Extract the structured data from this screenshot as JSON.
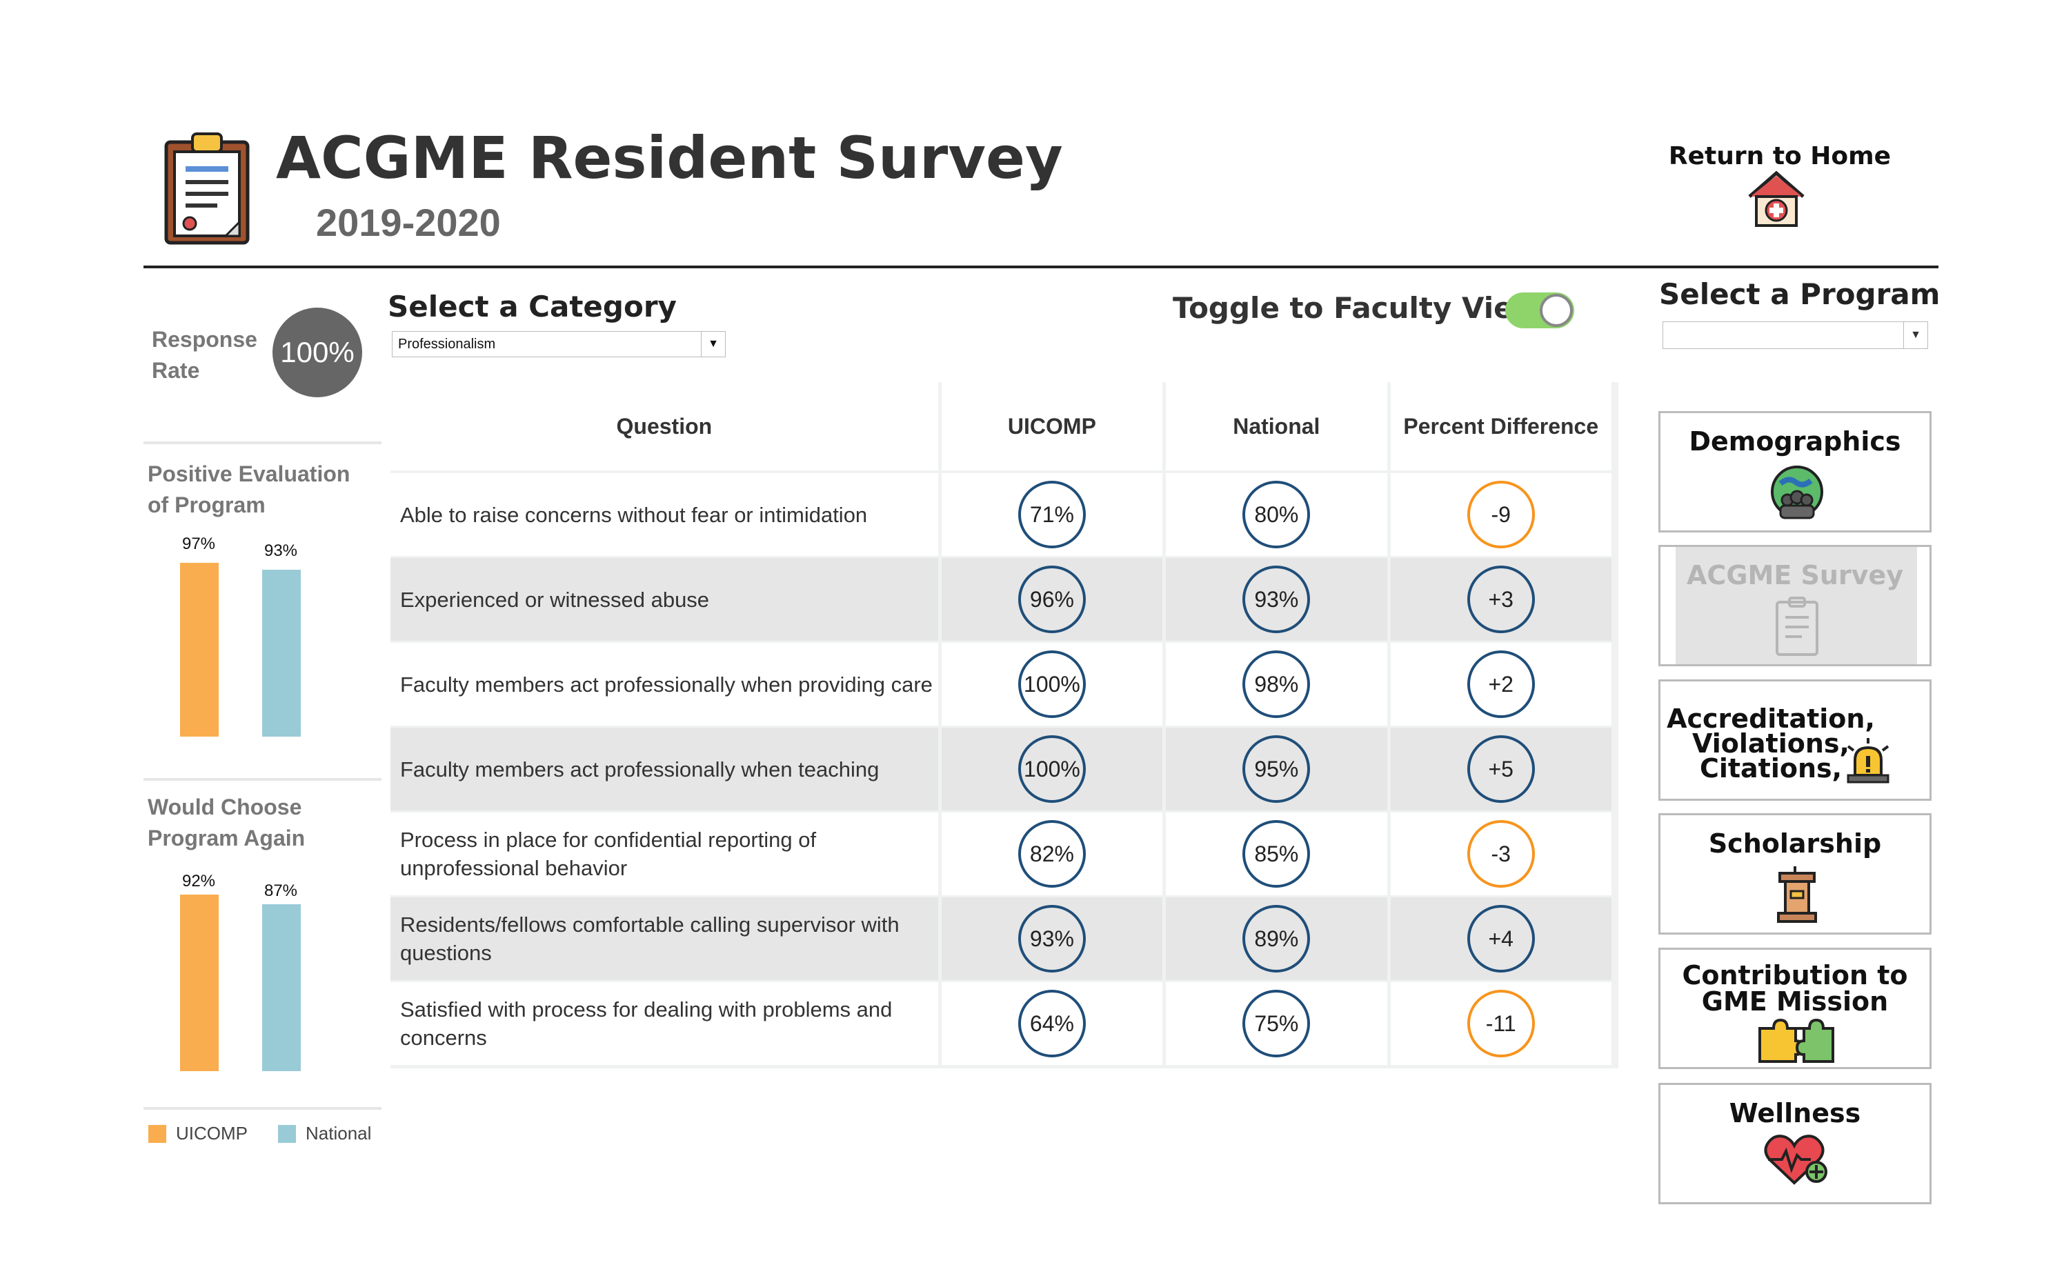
{
  "header": {
    "title": "ACGME Resident Survey",
    "subtitle": "2019-2020",
    "return_home": "Return to Home"
  },
  "left": {
    "response_rate_label": "Response\nRate",
    "response_rate_value": "100%",
    "sections": [
      {
        "title": "Positive Evaluation of Program",
        "uicomp": "97%",
        "national": "93%"
      },
      {
        "title": "Would Choose Program Again",
        "uicomp": "92%",
        "national": "87%"
      }
    ],
    "legend": {
      "uicomp": "UICOMP",
      "national": "National"
    }
  },
  "filters": {
    "category_label": "Select a Category",
    "category_value": "Professionalism",
    "toggle_label": "Toggle to Faculty View",
    "program_label": "Select a Program",
    "program_value": ""
  },
  "table": {
    "headers": [
      "Question",
      "UICOMP",
      "National",
      "Percent Difference"
    ],
    "rows": [
      {
        "question": "Able to raise concerns without fear or intimidation",
        "uicomp": "71%",
        "national": "80%",
        "diff": "-9"
      },
      {
        "question": "Experienced or witnessed abuse",
        "uicomp": "96%",
        "national": "93%",
        "diff": "+3"
      },
      {
        "question": "Faculty members act professionally when providing care",
        "uicomp": "100%",
        "national": "98%",
        "diff": "+2"
      },
      {
        "question": "Faculty members act professionally when teaching",
        "uicomp": "100%",
        "national": "95%",
        "diff": "+5"
      },
      {
        "question": "Process in place for confidential reporting of unprofessional behavior",
        "uicomp": "82%",
        "national": "85%",
        "diff": "-3"
      },
      {
        "question": "Residents/fellows comfortable calling supervisor with questions",
        "uicomp": "93%",
        "national": "89%",
        "diff": "+4"
      },
      {
        "question": "Satisfied with process for dealing with problems and concerns",
        "uicomp": "64%",
        "national": "75%",
        "diff": "-11"
      }
    ]
  },
  "nav": [
    {
      "label": "Demographics",
      "icon": "globe-people-icon"
    },
    {
      "label": "ACGME Survey",
      "icon": "clipboard-icon"
    },
    {
      "label": "Accreditation,\nViolations,\nCitations,",
      "icon": "alarm-light-icon"
    },
    {
      "label": "Scholarship",
      "icon": "podium-icon"
    },
    {
      "label": "Contribution to\nGME Mission",
      "icon": "puzzle-icon"
    },
    {
      "label": "Wellness",
      "icon": "heart-pulse-icon"
    }
  ],
  "colors": {
    "uicomp": "#f9ad4e",
    "national": "#99cbd6",
    "positive_circle": "#1f4e79",
    "negative_circle": "#f7941d"
  }
}
